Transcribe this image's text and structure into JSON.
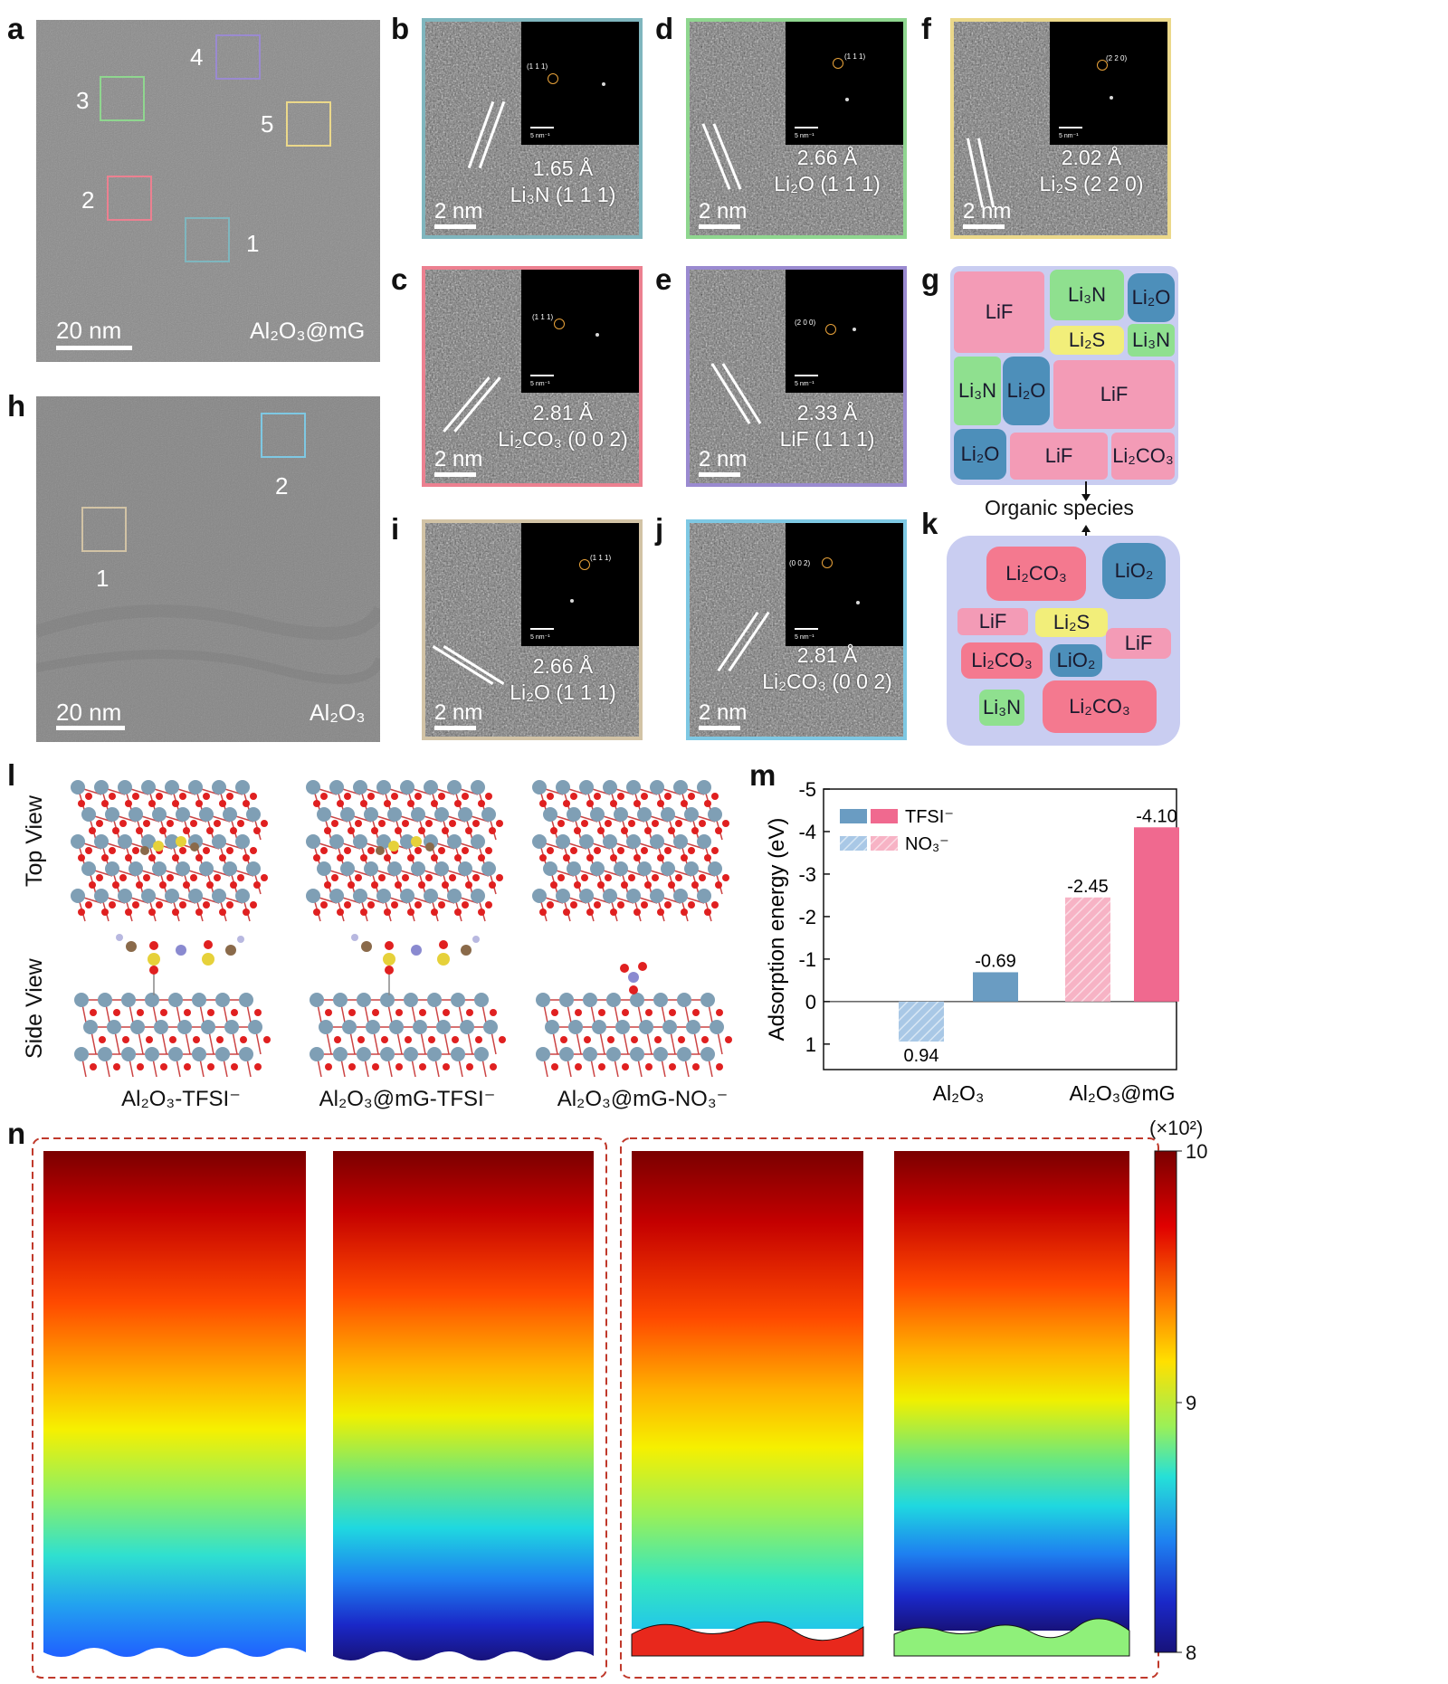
{
  "panels": {
    "a": {
      "label": "a",
      "sample": "Al₂O₃@mG",
      "scale": "20 nm",
      "rois": [
        {
          "n": "1",
          "color": "#7fb6be"
        },
        {
          "n": "2",
          "color": "#ec8090"
        },
        {
          "n": "3",
          "color": "#8fd68f"
        },
        {
          "n": "4",
          "color": "#9a8ad0"
        },
        {
          "n": "5",
          "color": "#ebd88a"
        }
      ]
    },
    "h": {
      "label": "h",
      "sample": "Al₂O₃",
      "scale": "20 nm",
      "rois": [
        {
          "n": "1",
          "color": "#d2c3a5"
        },
        {
          "n": "2",
          "color": "#7ec8e3"
        }
      ]
    },
    "hrtem": [
      {
        "label": "b",
        "d": "1.65 Å",
        "phase": "Li₃N (1 1 1)",
        "fft": "(1 1 1)",
        "fft_scale": "5 nm⁻¹",
        "scale": "2 nm",
        "color": "#7fb6be"
      },
      {
        "label": "d",
        "d": "2.66 Å",
        "phase": "Li₂O (1 1 1)",
        "fft": "(1 1 1)",
        "fft_scale": "5 nm⁻¹",
        "scale": "2 nm",
        "color": "#8fd68f"
      },
      {
        "label": "f",
        "d": "2.02 Å",
        "phase": "Li₂S (2 2 0)",
        "fft": "(2 2 0)",
        "fft_scale": "5 nm⁻¹",
        "scale": "2 nm",
        "color": "#ebd88a"
      },
      {
        "label": "c",
        "d": "2.81 Å",
        "phase": "Li₂CO₃ (0 0 2)",
        "fft": "(1 1 1)",
        "fft_scale": "5 nm⁻¹",
        "scale": "2 nm",
        "color": "#ec8090"
      },
      {
        "label": "e",
        "d": "2.33 Å",
        "phase": "LiF (1 1 1)",
        "fft": "(2 0 0)",
        "fft_scale": "5 nm⁻¹",
        "scale": "2 nm",
        "color": "#9a8ad0"
      },
      {
        "label": "i",
        "d": "2.66 Å",
        "phase": "Li₂O (1 1 1)",
        "fft": "(1 1 1)",
        "fft_scale": "5 nm⁻¹",
        "scale": "2 nm",
        "color": "#d2c3a5"
      },
      {
        "label": "j",
        "d": "2.81 Å",
        "phase": "Li₂CO₃ (0 0 2)",
        "fft": "(0 0 2)",
        "fft_scale": "5 nm⁻¹",
        "scale": "2 nm",
        "color": "#7ec8e3"
      }
    ],
    "g": {
      "label": "g",
      "blobs": [
        "LiF",
        "Li₃N",
        "Li₂O",
        "Li₂S",
        "Li₃N",
        "Li₃N",
        "Li₂O",
        "LiF",
        "Li₂O",
        "LiF",
        "Li₂CO₃"
      ]
    },
    "k": {
      "label": "k",
      "organic": "Organic species",
      "blobs": [
        "Li₂CO₃",
        "LiO₂",
        "LiF",
        "Li₂S",
        "LiF",
        "Li₂CO₃",
        "LiO₂",
        "Li₃N",
        "Li₂CO₃"
      ]
    },
    "l": {
      "label": "l",
      "top_view": "Top View",
      "side_view": "Side View",
      "captions": [
        "Al₂O₃-TFSI⁻",
        "Al₂O₃@mG-TFSI⁻",
        "Al₂O₃@mG-NO₃⁻"
      ]
    },
    "n": {
      "label": "n",
      "cbar_unit": "(×10²)",
      "cbar_ticks": [
        "10",
        "9",
        "8"
      ]
    }
  },
  "chart_data": {
    "type": "bar",
    "label": "m",
    "ylabel": "Adsorption energy (eV)",
    "ylim": [
      1.6,
      -5
    ],
    "y_ticks": [
      1,
      0,
      -1,
      -2,
      -3,
      -4,
      -5
    ],
    "categories": [
      "Al₂O₃",
      "Al₂O₃@mG"
    ],
    "legend": [
      {
        "name": "TFSI⁻",
        "color": "#f0698f"
      },
      {
        "name": "NO₃⁻",
        "color": "#f7b3c5"
      }
    ],
    "bars": [
      {
        "category": "Al₂O₃",
        "value": 0.94,
        "label": "0.94",
        "color": "#a9c8e6",
        "hatched": true
      },
      {
        "category": "Al₂O₃",
        "value": -0.69,
        "label": "-0.69",
        "color": "#6a9cc2",
        "hatched": false
      },
      {
        "category": "Al₂O₃@mG",
        "value": -2.45,
        "label": "-2.45",
        "color": "#f7b3c5",
        "hatched": true
      },
      {
        "category": "Al₂O₃@mG",
        "value": -4.1,
        "label": "-4.10",
        "color": "#f0698f",
        "hatched": false
      }
    ],
    "legend_swatches": {
      "tfsi_light": "#6a9cc2",
      "tfsi_pink": "#f0698f",
      "no3_light": "#a9c8e6",
      "no3_pink": "#f7b3c5"
    }
  }
}
